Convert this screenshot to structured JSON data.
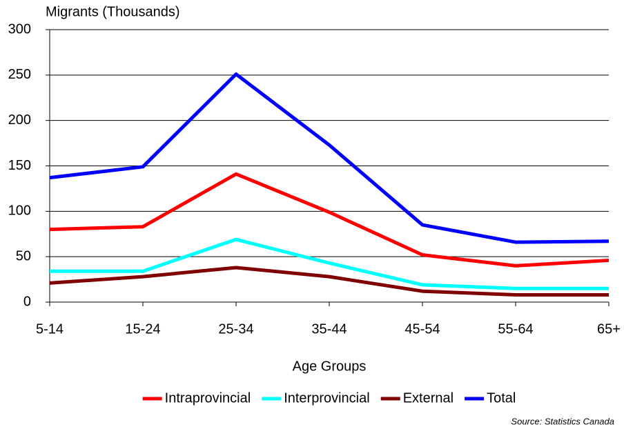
{
  "chart_data": {
    "type": "line",
    "title": "Migrants (Thousands)",
    "x_label": "Age Groups",
    "source": "Source: Statistics Canada",
    "categories": [
      "5-14",
      "15-24",
      "25-34",
      "35-44",
      "45-54",
      "55-64",
      "65+"
    ],
    "series": [
      {
        "name": "Intraprovincial",
        "color": "#ff0000",
        "values": [
          80,
          83,
          141,
          99,
          52,
          40,
          46
        ]
      },
      {
        "name": "Interprovincial",
        "color": "#00ffff",
        "values": [
          34,
          34,
          69,
          43,
          19,
          15,
          15
        ]
      },
      {
        "name": "External",
        "color": "#800000",
        "values": [
          21,
          28,
          38,
          28,
          12,
          8,
          8
        ]
      },
      {
        "name": "Total",
        "color": "#0000ff",
        "values": [
          137,
          149,
          251,
          173,
          85,
          66,
          67
        ]
      }
    ],
    "ylim": [
      0,
      300
    ],
    "yticks": [
      0,
      50,
      100,
      150,
      200,
      250,
      300
    ],
    "grid": true,
    "legend": "bottom"
  }
}
